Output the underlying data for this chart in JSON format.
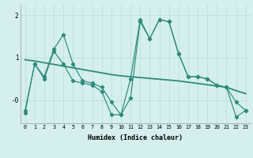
{
  "xlabel": "Humidex (Indice chaleur)",
  "x_values": [
    0,
    1,
    2,
    3,
    4,
    5,
    6,
    7,
    8,
    9,
    10,
    11,
    12,
    13,
    14,
    15,
    16,
    17,
    18,
    19,
    20,
    21,
    22,
    23
  ],
  "line1_y": [
    -0.3,
    0.85,
    0.55,
    1.2,
    1.55,
    0.85,
    0.45,
    0.4,
    0.3,
    -0.05,
    -0.35,
    0.5,
    1.9,
    1.45,
    1.9,
    1.85,
    1.1,
    0.55,
    0.55,
    0.5,
    0.35,
    0.3,
    -0.05,
    -0.25
  ],
  "line2_y": [
    -0.25,
    0.85,
    0.5,
    1.15,
    0.85,
    0.45,
    0.4,
    0.35,
    0.2,
    -0.35,
    -0.35,
    0.05,
    1.85,
    1.45,
    1.9,
    1.85,
    1.1,
    0.55,
    0.55,
    0.5,
    0.35,
    0.3,
    -0.4,
    -0.25
  ],
  "trend_y": [
    0.95,
    0.92,
    0.88,
    0.84,
    0.8,
    0.76,
    0.72,
    0.68,
    0.64,
    0.6,
    0.57,
    0.55,
    0.53,
    0.51,
    0.49,
    0.47,
    0.45,
    0.42,
    0.39,
    0.36,
    0.33,
    0.3,
    0.22,
    0.15
  ],
  "line_color": "#2d8b7a",
  "bg_color": "#d4efed",
  "grid_color": "#bde0dc",
  "ylim": [
    -0.55,
    2.25
  ],
  "ytick_vals": [
    0.0,
    1.0,
    2.0
  ],
  "ytick_labels": [
    "-0",
    "1",
    "2"
  ],
  "xlim": [
    -0.5,
    23.5
  ]
}
